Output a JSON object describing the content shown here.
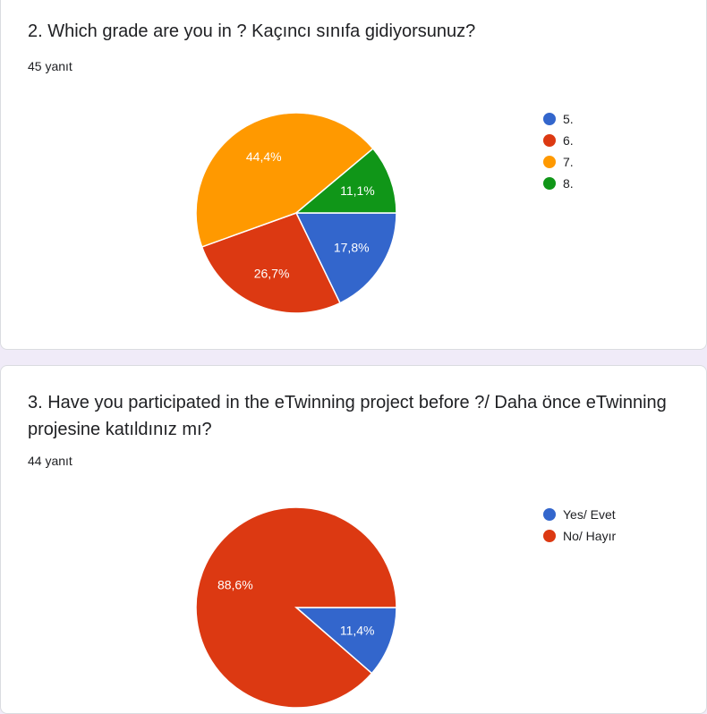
{
  "chart_data": [
    {
      "type": "pie",
      "title": "2. Which grade are you in ? Kaçıncı sınıfa gidiyorsunuz?",
      "responses": "45 yanıt",
      "legend_position": "right",
      "slices": [
        {
          "label": "5.",
          "value": 17.8,
          "display": "17,8%",
          "color": "#3366cc"
        },
        {
          "label": "6.",
          "value": 26.7,
          "display": "26,7%",
          "color": "#dc3912"
        },
        {
          "label": "7.",
          "value": 44.4,
          "display": "44,4%",
          "color": "#ff9900"
        },
        {
          "label": "8.",
          "value": 11.1,
          "display": "11,1%",
          "color": "#109618"
        }
      ]
    },
    {
      "type": "pie",
      "title": "3. Have you participated in the eTwinning project before ?/ Daha önce eTwinning projesine katıldınız mı?",
      "responses": "44 yanıt",
      "legend_position": "right",
      "slices": [
        {
          "label": "Yes/ Evet",
          "value": 11.4,
          "display": "11,4%",
          "color": "#3366cc"
        },
        {
          "label": "No/ Hayır",
          "value": 88.6,
          "display": "88,6%",
          "color": "#dc3912"
        }
      ]
    }
  ]
}
